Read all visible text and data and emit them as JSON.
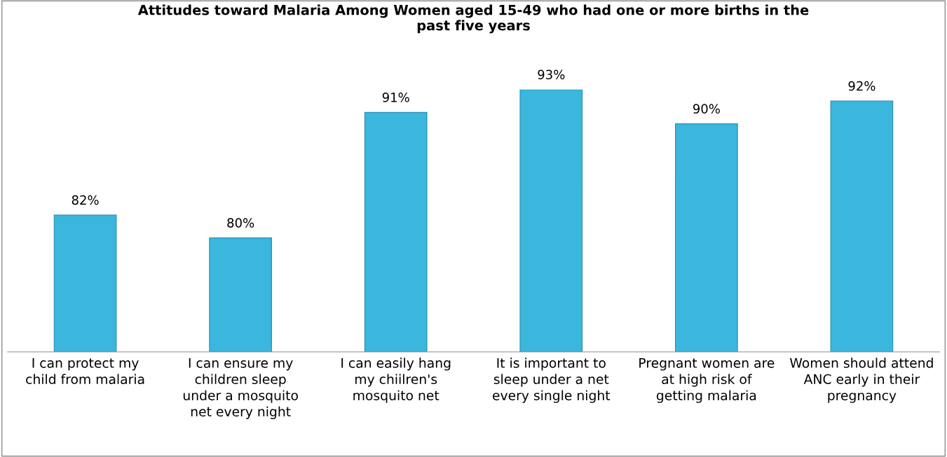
{
  "chart_data": {
    "type": "bar",
    "title": "Attitudes toward Malaria Among Women aged 15-49 who had one or more births in the past five years",
    "categories": [
      "I can protect my child from malaria",
      "I can ensure my children sleep under a mosquito net every night",
      "I can easily hang my chiilren's mosquito net",
      "It is important to sleep under a net every single night",
      "Pregnant women are at high risk of getting malaria",
      "Women should attend ANC early in their pregnancy"
    ],
    "values": [
      82,
      80,
      91,
      93,
      90,
      92
    ],
    "value_labels": [
      "82%",
      "80%",
      "91%",
      "93%",
      "90%",
      "92%"
    ],
    "color": "#3bb6dc",
    "ylim": [
      70,
      93
    ],
    "grid": false
  }
}
